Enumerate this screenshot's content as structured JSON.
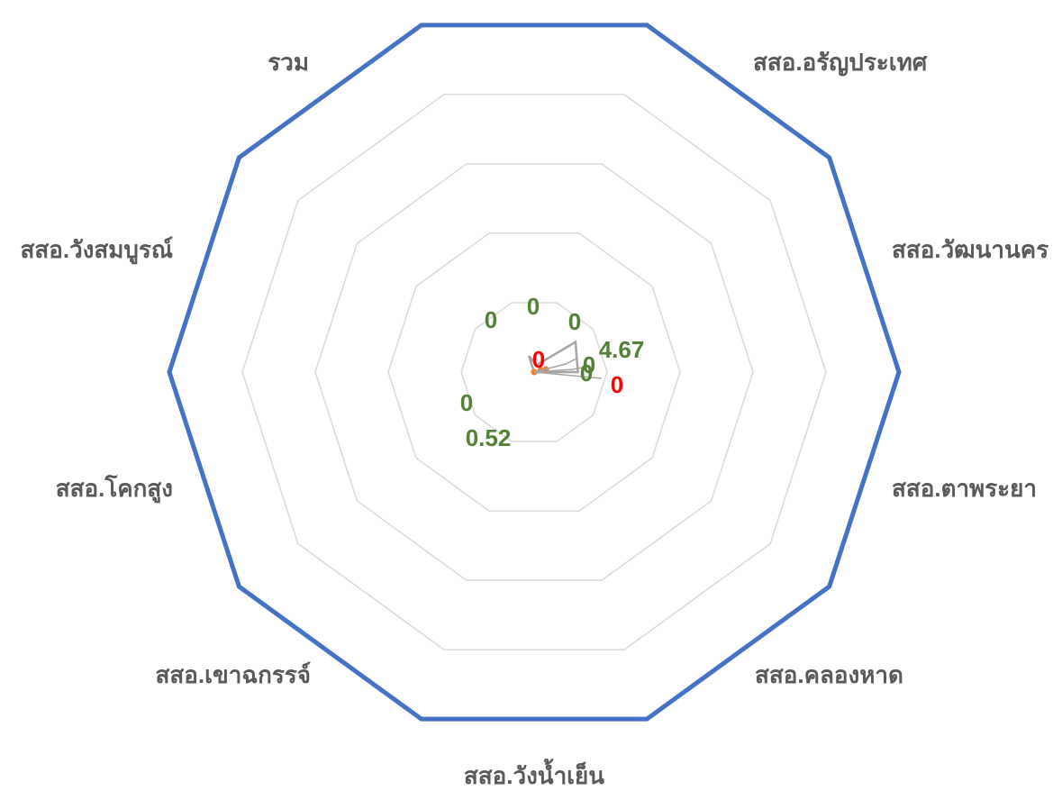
{
  "chart_data": {
    "type": "radar",
    "categories": [
      "สสอ.อรัญประเทศ",
      "สสอ.วัฒนานคร",
      "สสอ.ตาพระยา",
      "สสอ.คลองหาด",
      "สสอ.วังน้ำเย็น",
      "สสอ.เขาฉกรรจ์",
      "สสอ.โคกสูง",
      "สสอ.วังสมบูรณ์",
      "รวม",
      ""
    ],
    "rlim": [
      0,
      100
    ],
    "grid": true,
    "legend": "none",
    "series": [
      {
        "color": "#4472C4",
        "values": [
          100,
          100,
          100,
          100,
          100,
          100,
          100,
          100,
          100,
          100
        ],
        "labels_visible": false
      },
      {
        "color": "#ED7D31",
        "values": [
          0,
          0,
          0,
          0,
          0,
          0,
          0,
          0,
          0,
          0
        ],
        "data_labels": [
          {
            "text": "0",
            "color": "#FF0000"
          },
          {
            "text": "0",
            "color": "#FF0000"
          }
        ]
      },
      {
        "color": "#A5A5A5",
        "values": [
          2,
          14,
          12,
          0,
          0,
          0,
          0,
          0.52,
          0,
          4.67
        ],
        "data_labels": [
          {
            "text": "0",
            "color": "#538135"
          },
          {
            "text": "4.67",
            "color": "#538135"
          },
          {
            "text": "0",
            "color": "#538135"
          },
          {
            "text": "0",
            "color": "#538135"
          },
          {
            "text": "0",
            "color": "#538135"
          },
          {
            "text": "0",
            "color": "#538135"
          },
          {
            "text": "0.52",
            "color": "#538135"
          },
          {
            "text": "0",
            "color": "#538135"
          }
        ]
      }
    ]
  }
}
